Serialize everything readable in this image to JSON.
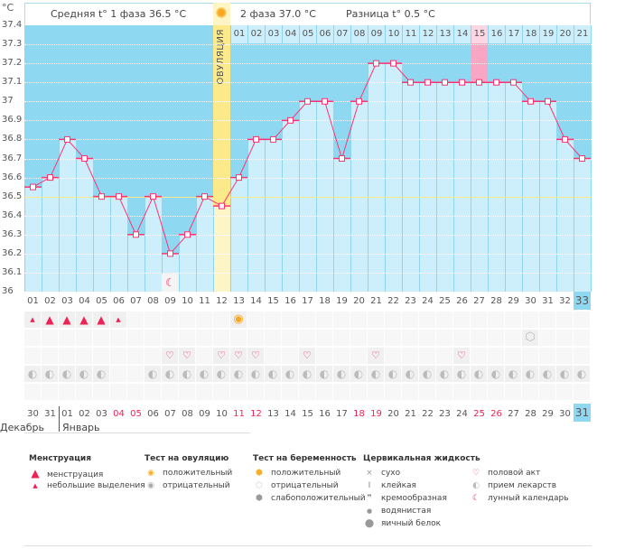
{
  "chart_data": {
    "type": "line",
    "ylabel": "°C",
    "ylim": [
      36,
      37.4
    ],
    "yticks": [
      "37.4",
      "37.3",
      "37.2",
      "37.1",
      "37",
      "36.9",
      "36.8",
      "36.7",
      "36.6",
      "36.5",
      "36.4",
      "36.3",
      "36.2",
      "36.1",
      "36"
    ],
    "cycle_days": [
      "01",
      "02",
      "03",
      "04",
      "05",
      "06",
      "07",
      "08",
      "09",
      "10",
      "11",
      "12",
      "13",
      "14",
      "15",
      "16",
      "17",
      "18",
      "19",
      "20",
      "21",
      "22",
      "23",
      "24",
      "25",
      "26",
      "27",
      "28",
      "29",
      "30",
      "31",
      "32",
      "33"
    ],
    "series": [
      {
        "values": [
          36.55,
          36.6,
          36.8,
          36.7,
          36.5,
          36.5,
          36.3,
          36.5,
          36.2,
          36.3,
          36.5,
          36.45,
          36.6,
          36.8,
          36.8,
          36.9,
          37.0,
          37.0,
          36.7,
          37.0,
          37.2,
          37.2,
          37.1,
          37.1,
          37.1,
          37.1,
          37.1,
          37.1,
          37.1,
          37.0,
          37.0,
          36.8,
          36.7
        ]
      }
    ],
    "phase1_average_line": 36.5,
    "ovulation_day": "12",
    "current_day": "33",
    "phase2_days": [
      "01",
      "02",
      "03",
      "04",
      "05",
      "06",
      "07",
      "08",
      "09",
      "10",
      "11",
      "12",
      "13",
      "14",
      "15",
      "16",
      "17",
      "18",
      "19",
      "20",
      "21"
    ],
    "phase2_highlight": "15",
    "grid": true
  },
  "header": {
    "phase1": "Средняя t° 1 фаза 36.5 °C",
    "phase2": "2 фаза 37.0 °C",
    "difference": "Разница t° 0.5 °C",
    "ovulation": "ОВУЛЯЦИЯ"
  },
  "rows": {
    "menstruation": {
      "01": "small",
      "02": "big",
      "03": "big",
      "04": "big",
      "05": "big",
      "06": "small"
    },
    "ovulation_test": {
      "13": "positive"
    },
    "pregnancy_test": {
      "30": "negative"
    },
    "intercourse": [
      "09",
      "10",
      "12",
      "13",
      "14",
      "17",
      "21",
      "26"
    ],
    "medication": [
      "01",
      "02",
      "03",
      "04",
      "05",
      "08",
      "09",
      "10",
      "11",
      "12",
      "13",
      "14",
      "15",
      "16",
      "17",
      "18",
      "19",
      "20",
      "21",
      "22",
      "23",
      "24",
      "25",
      "26",
      "27",
      "28",
      "29",
      "30",
      "31",
      "32",
      "33"
    ],
    "moon": [
      "09"
    ]
  },
  "dates": [
    "30",
    "31",
    "01",
    "02",
    "03",
    "04",
    "05",
    "06",
    "07",
    "08",
    "09",
    "10",
    "11",
    "12",
    "13",
    "14",
    "15",
    "16",
    "17",
    "18",
    "19",
    "20",
    "21",
    "22",
    "23",
    "24",
    "25",
    "26",
    "27",
    "28",
    "29",
    "30",
    "31"
  ],
  "weekend_dates_index": [
    5,
    6,
    12,
    13,
    19,
    20,
    26,
    27
  ],
  "months": {
    "dec": "Декабрь",
    "jan": "Январь"
  },
  "colors": {
    "dark": "#8fd8f2",
    "light": "#cdeefb",
    "line": "#ff3370",
    "ovulation": "#fbe98a",
    "weekend": "#ee2255"
  },
  "legend": {
    "menstruation": {
      "title": "Менструация",
      "items": [
        "менструация",
        "небольшие выделения"
      ]
    },
    "ovulation_test": {
      "title": "Тест на овуляцию",
      "items": [
        "положительный",
        "отрицательный"
      ]
    },
    "pregnancy_test": {
      "title": "Тест на беременность",
      "items": [
        "положительный",
        "отрицательный",
        "слабоположительный"
      ]
    },
    "cervical": {
      "title": "Цервикальная жидкость",
      "items": [
        "сухо",
        "клейкая",
        "кремообразная",
        "водянистая",
        "яичный белок"
      ]
    },
    "other": {
      "items": [
        "половой акт",
        "прием лекарств",
        "лунный календарь"
      ]
    }
  }
}
